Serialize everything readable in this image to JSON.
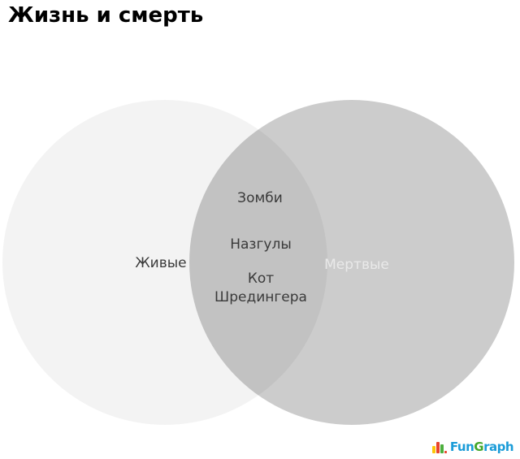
{
  "title": "Жизнь и смерть",
  "chart_data": {
    "type": "venn",
    "title": "Жизнь и смерть",
    "sets": [
      {
        "label": "Живые",
        "fill": "#f3f3f3",
        "label_color": "#3a3a3a"
      },
      {
        "label": "Мертвые",
        "fill": "#cccccc",
        "label_color": "#e9e9e9"
      }
    ],
    "intersection": {
      "fill": "#c2c2c2",
      "items": [
        "Зомби",
        "Назгулы",
        "Кот Шредингера"
      ]
    },
    "background": "#ffffff",
    "legend": "none",
    "grid": false
  },
  "watermark": {
    "name": "FunGraph",
    "part_fun": "Fun",
    "part_g": "G",
    "part_raph": "raph",
    "blue": "#1b9cd8",
    "green": "#43a72a",
    "icon_bar_colors": [
      "#fdc608",
      "#e8442c",
      "#4caf3e"
    ]
  }
}
